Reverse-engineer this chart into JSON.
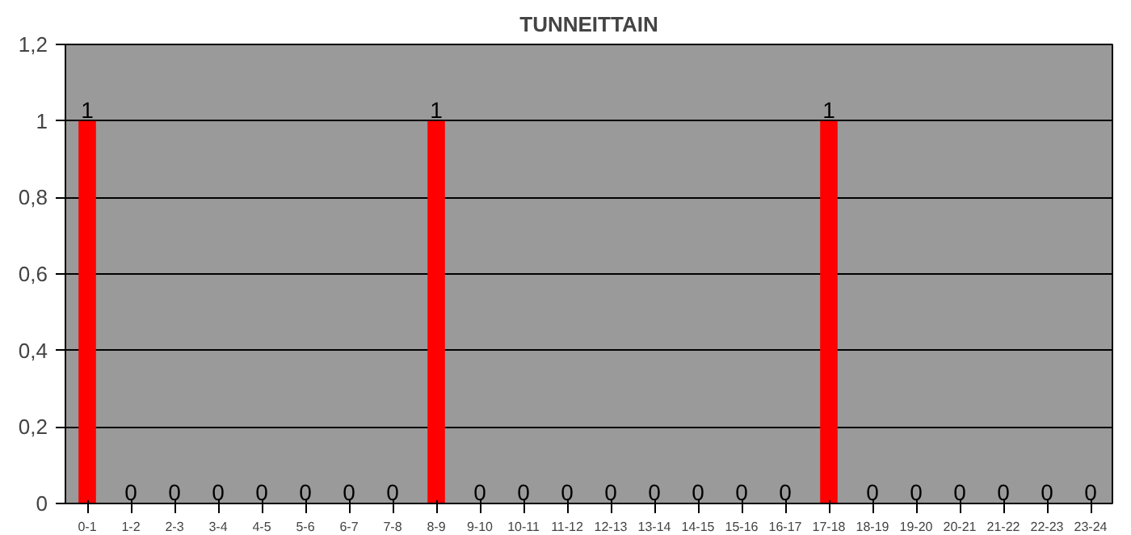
{
  "chart_data": {
    "type": "bar",
    "title": "TUNNEITTAIN",
    "categories": [
      "0-1",
      "1-2",
      "2-3",
      "3-4",
      "4-5",
      "5-6",
      "6-7",
      "7-8",
      "8-9",
      "9-10",
      "10-11",
      "11-12",
      "12-13",
      "13-14",
      "14-15",
      "15-16",
      "16-17",
      "17-18",
      "18-19",
      "19-20",
      "20-21",
      "21-22",
      "22-23",
      "23-24"
    ],
    "values": [
      1,
      0,
      0,
      0,
      0,
      0,
      0,
      0,
      1,
      0,
      0,
      0,
      0,
      0,
      0,
      0,
      0,
      1,
      0,
      0,
      0,
      0,
      0,
      0
    ],
    "color": "#ff0000",
    "ylim": [
      0,
      1.2
    ],
    "yticks": [
      0,
      {
        "value": 0.2,
        "label": "0,2"
      },
      {
        "value": 0.4,
        "label": "0,4"
      },
      {
        "value": 0.6,
        "label": "0,6"
      },
      {
        "value": 0.8,
        "label": "0,8"
      },
      1,
      {
        "value": 1.2,
        "label": "1,2"
      }
    ],
    "grid": "y",
    "data_labels": true
  }
}
